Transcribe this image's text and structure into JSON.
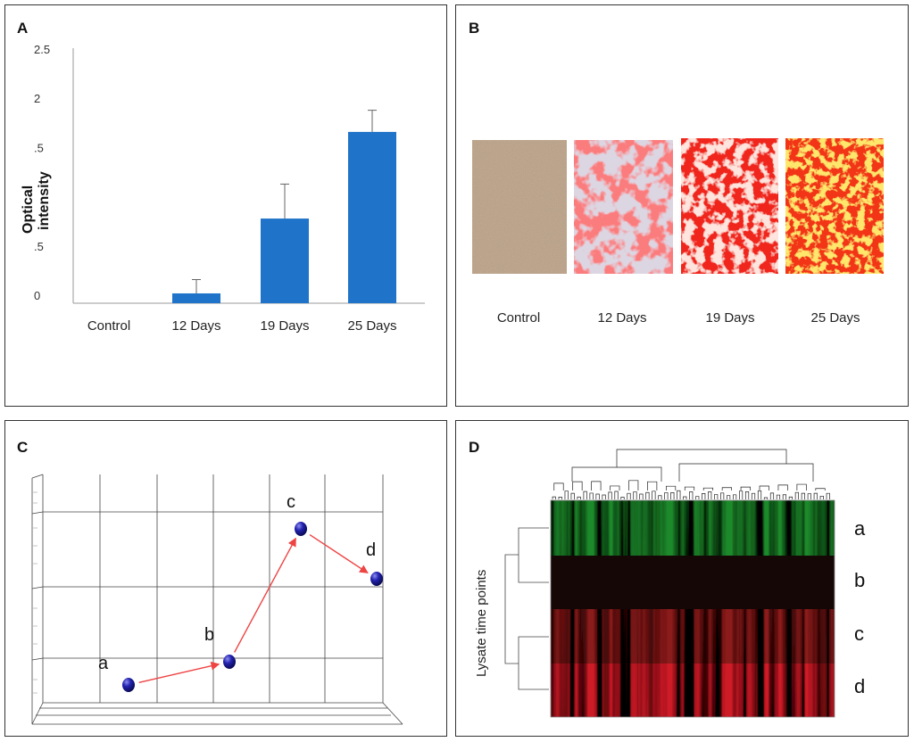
{
  "panels": {
    "a": {
      "label": "A"
    },
    "b": {
      "label": "B"
    },
    "c": {
      "label": "C"
    },
    "d": {
      "label": "D"
    }
  },
  "chart_data": [
    {
      "type": "bar",
      "panel": "A",
      "categories": [
        "Control",
        "12 Days",
        "19 Days",
        "25 Days"
      ],
      "values": [
        0.0,
        0.1,
        0.86,
        1.74
      ],
      "errors": [
        0.0,
        0.14,
        0.35,
        0.22
      ],
      "ylabel": "Optical intensity",
      "ylim": [
        0,
        2.5
      ],
      "ytick_labels": [
        "0",
        ".5",
        "",
        ".5",
        "2",
        "2.5"
      ],
      "bar_color": "#1f73c9"
    },
    {
      "type": "scatter",
      "panel": "C",
      "points": [
        {
          "label": "a",
          "x": 1.0,
          "y": 0.3
        },
        {
          "label": "b",
          "x": 2.0,
          "y": 0.7
        },
        {
          "label": "c",
          "x": 3.0,
          "y": 3.1
        },
        {
          "label": "d",
          "x": 4.0,
          "y": 2.2
        }
      ],
      "arrows": [
        [
          "a",
          "b"
        ],
        [
          "b",
          "c"
        ],
        [
          "c",
          "d"
        ]
      ],
      "arrow_color": "#ee4444",
      "point_color": "#1a1aa0"
    },
    {
      "type": "heatmap",
      "panel": "D",
      "ylabel": "Lysate time points",
      "rows": [
        "a",
        "b",
        "c",
        "d"
      ]
    }
  ],
  "panel_b": {
    "captions": [
      "Control",
      "12 Days",
      "19 Days",
      "25 Days"
    ]
  }
}
